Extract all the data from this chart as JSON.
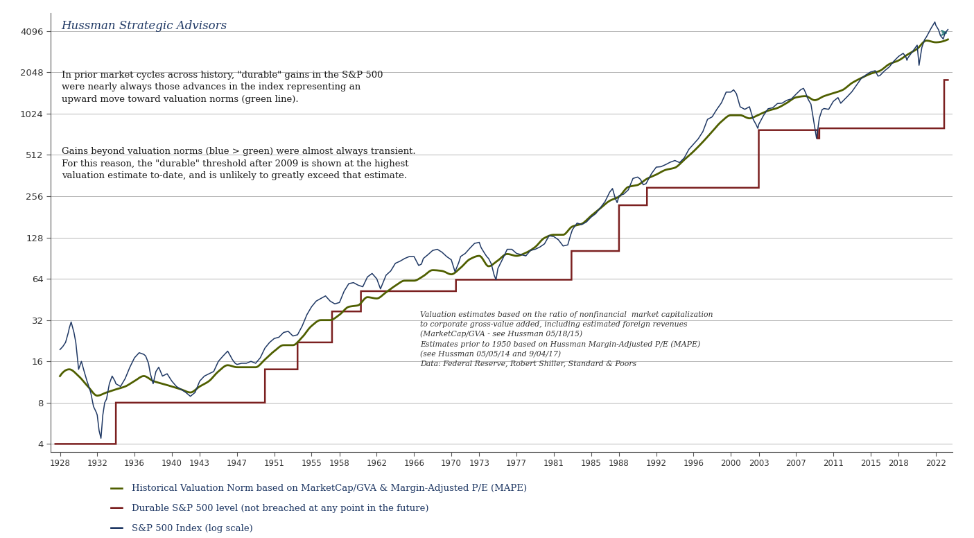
{
  "title": "Hussman Strategic Advisors",
  "annotation1": "In prior market cycles across history, \"durable\" gains in the S&P 500\nwere nearly always those advances in the index representing an\nupward move toward valuation norms (green line).",
  "annotation2": "Gains beyond valuation norms (blue > green) were almost always transient.\nFor this reason, the \"durable\" threshold after 2009 is shown at the highest\nvaluation estimate to-date, and is unlikely to greatly exceed that estimate.",
  "annotation3": "Valuation estimates based on the ratio of nonfinancial  market capitalization\nto corporate gross-value added, including estimated foreign revenues\n(MarketCap/GVA - see Hussman 05/18/15)\nEstimates prior to 1950 based on Hussman Margin-Adjusted P/E (MAPE)\n(see Hussman 05/05/14 and 9/04/17)\nData: Federal Reserve, Robert Shiller, Standard & Poors",
  "sp500_color": "#1f3864",
  "valuation_color": "#4f5f00",
  "durable_color": "#7b2020",
  "arrow_color": "#2e7d7d",
  "background_color": "#ffffff",
  "legend_items": [
    {
      "color": "#4f5f00",
      "label": "Historical Valuation Norm based on MarketCap/GVA & Margin-Adjusted P/E (MAPE)"
    },
    {
      "color": "#7b2020",
      "label": "Durable S&P 500 level (not breached at any point in the future)"
    },
    {
      "color": "#1f3864",
      "label": "S&P 500 Index (log scale)"
    }
  ],
  "yticks": [
    4,
    8,
    16,
    32,
    64,
    128,
    256,
    512,
    1024,
    2048,
    4096
  ],
  "ytick_labels": [
    "4",
    "8",
    "16",
    "32",
    "64",
    "128",
    "256",
    "512",
    "1024",
    "2048",
    "4096"
  ],
  "xticks": [
    1928,
    1932,
    1936,
    1940,
    1943,
    1947,
    1951,
    1955,
    1958,
    1962,
    1966,
    1970,
    1973,
    1977,
    1981,
    1985,
    1988,
    1992,
    1996,
    2000,
    2003,
    2007,
    2011,
    2015,
    2018,
    2022
  ],
  "xlim_start": 1927.0,
  "xlim_end": 2023.8,
  "ylim_bottom": 3.5,
  "ylim_top": 5500
}
